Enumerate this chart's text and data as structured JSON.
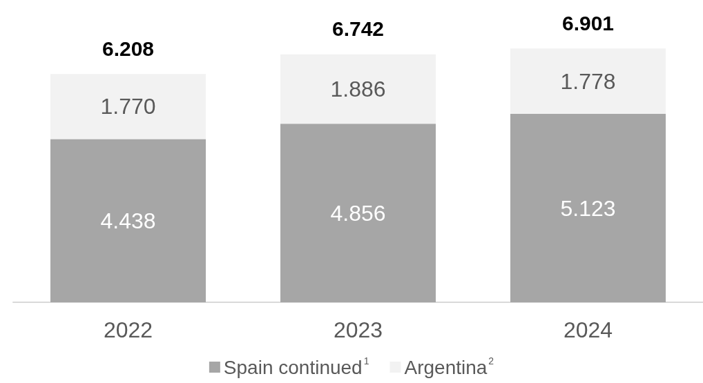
{
  "chart_data": {
    "type": "bar",
    "stacked": true,
    "categories": [
      "2022",
      "2023",
      "2024"
    ],
    "series": [
      {
        "name": "Spain continued$^{1}$",
        "color": "#a6a6a6",
        "values": [
          4.438,
          4.856,
          5.123
        ],
        "value_labels": [
          "4.438",
          "4.856",
          "5.123"
        ]
      },
      {
        "name": "Argentina$^{2}$",
        "color": "#f2f2f2",
        "values": [
          1.77,
          1.886,
          1.778
        ],
        "value_labels": [
          "1.770",
          "1.886",
          "1.778"
        ]
      }
    ],
    "totals": [
      "6.208",
      "6.742",
      "6.901"
    ],
    "legend": "bottom",
    "grid": false
  }
}
